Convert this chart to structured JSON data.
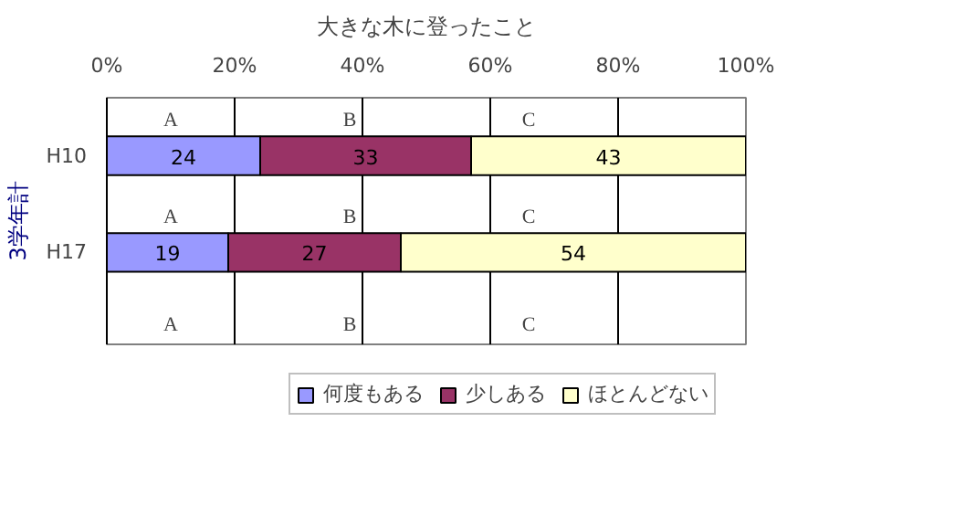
{
  "chart_data": {
    "type": "bar",
    "orientation": "horizontal",
    "stacked": true,
    "title": "大きな木に登ったこと",
    "ylabel": "3学年計",
    "categories": [
      "H10",
      "H17"
    ],
    "series": [
      {
        "name": "何度もある",
        "color": "#9999ff",
        "values": [
          24,
          19
        ]
      },
      {
        "name": "少しある",
        "color": "#993366",
        "values": [
          33,
          27
        ]
      },
      {
        "name": "ほとんどない",
        "color": "#ffffcc",
        "values": [
          43,
          54
        ]
      }
    ],
    "xlim": [
      0,
      100
    ],
    "xticks": [
      {
        "value": 0,
        "label": "0%"
      },
      {
        "value": 20,
        "label": "20%"
      },
      {
        "value": 40,
        "label": "40%"
      },
      {
        "value": 60,
        "label": "60%"
      },
      {
        "value": 80,
        "label": "80%"
      },
      {
        "value": 100,
        "label": "100%"
      }
    ],
    "grid": "x",
    "data_labels": true,
    "legend": "bottom",
    "annotations": [
      "A",
      "B",
      "C",
      "A",
      "B",
      "C",
      "A",
      "B",
      "C"
    ]
  }
}
